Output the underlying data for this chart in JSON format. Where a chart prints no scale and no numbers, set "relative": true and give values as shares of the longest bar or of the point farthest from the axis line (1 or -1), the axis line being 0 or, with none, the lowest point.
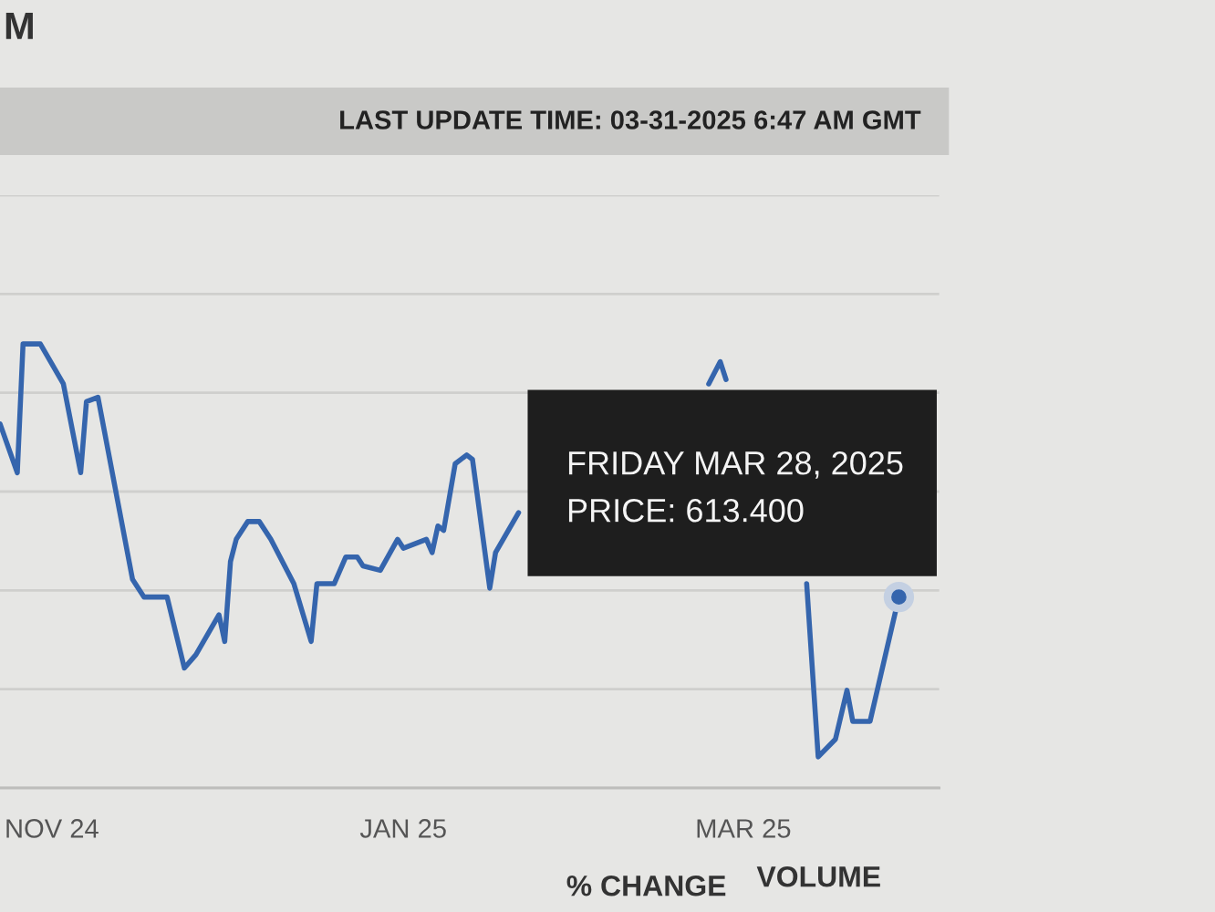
{
  "chart_data": {
    "type": "line",
    "relative": true,
    "title": "M",
    "subtitle": "LAST UPDATE TIME: 03-31-2025 6:47 AM GMT",
    "x": [
      "2024-10-23",
      "2024-10-26",
      "2024-10-27",
      "2024-10-30",
      "2024-11-03",
      "2024-11-06",
      "2024-11-07",
      "2024-11-09",
      "2024-11-15",
      "2024-11-17",
      "2024-11-21",
      "2024-11-24",
      "2024-11-26",
      "2024-11-30",
      "2024-12-01",
      "2024-12-02",
      "2024-12-03",
      "2024-12-05",
      "2024-12-07",
      "2024-12-09",
      "2024-12-13",
      "2024-12-16",
      "2024-12-17",
      "2024-12-20",
      "2024-12-22",
      "2024-12-24",
      "2024-12-25",
      "2024-12-28",
      "2024-12-31",
      "2025-01-01",
      "2025-01-05",
      "2025-01-06",
      "2025-01-07",
      "2025-01-08",
      "2025-01-10",
      "2025-01-12",
      "2025-01-13",
      "2025-01-16",
      "2025-01-17",
      "2025-01-21",
      "2025-02-09",
      "2025-02-23",
      "2025-02-25",
      "2025-02-26",
      "2025-03-05",
      "2025-03-12",
      "2025-03-14",
      "2025-03-17",
      "2025-03-19",
      "2025-03-20",
      "2025-03-23",
      "2025-03-28"
    ],
    "series": [
      {
        "color": "#3565ad",
        "values": [
          0.82,
          0.71,
          1.0,
          1.0,
          0.91,
          0.71,
          0.87,
          0.88,
          0.47,
          0.43,
          0.43,
          0.27,
          0.3,
          0.39,
          0.33,
          0.51,
          0.56,
          0.6,
          0.6,
          0.56,
          0.46,
          0.33,
          0.46,
          0.46,
          0.52,
          0.52,
          0.5,
          0.49,
          0.56,
          0.54,
          0.56,
          0.53,
          0.59,
          0.58,
          0.73,
          0.75,
          0.74,
          0.45,
          0.53,
          0.62,
          null,
          0.91,
          0.96,
          0.92,
          null,
          0.46,
          0.07,
          0.11,
          0.22,
          0.15,
          0.15,
          0.43
        ]
      }
    ],
    "xlim": [
      "2024-10-23",
      "2025-04-04"
    ],
    "xticks": [
      {
        "value": "2024-11-01",
        "label": "NOV 24"
      },
      {
        "value": "2025-01-01",
        "label": "JAN 25"
      },
      {
        "value": "2025-03-01",
        "label": "MAR 25"
      }
    ],
    "grid": "y",
    "line_style": "solid",
    "annotations": [
      {
        "text": "FRIDAY MAR 28, 2025\nPRICE: 613.400",
        "x": "2025-03-28",
        "y": 0.43
      },
      "% CHANGE",
      "VOLUME"
    ]
  }
}
